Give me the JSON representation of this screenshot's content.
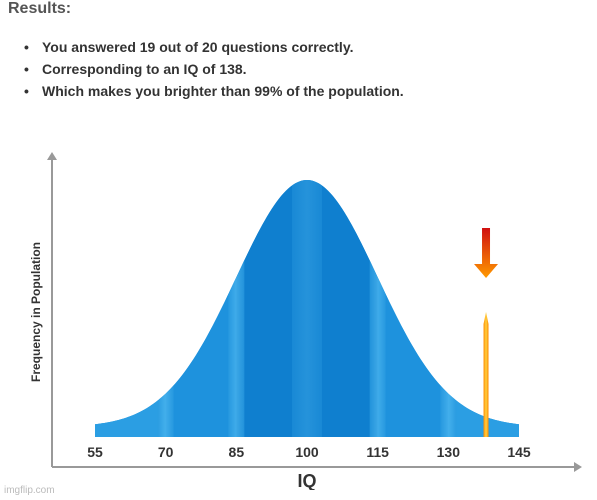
{
  "results": {
    "heading": "Results:",
    "items": [
      "You answered 19 out of 20 questions correctly.",
      "Corresponding to an IQ of 138.",
      "Which makes you brighter than 99% of the population."
    ]
  },
  "chart_data": {
    "type": "area",
    "title": "",
    "xlabel": "IQ",
    "ylabel": "Frequency in Population",
    "x_ticks": [
      55,
      70,
      85,
      100,
      115,
      130,
      145
    ],
    "xlim": [
      55,
      145
    ],
    "distribution": {
      "kind": "normal",
      "mean": 100,
      "sd": 15
    },
    "marker": {
      "x": 138
    },
    "grid": false,
    "colors": {
      "curve": "#1a8fdc",
      "curve_dark": "#0b6fc0",
      "curve_light": "#4fb4ee",
      "marker_top": "#d01010",
      "marker_bottom": "#ffb000",
      "axis": "#999999"
    }
  },
  "watermark": "imgflip.com"
}
